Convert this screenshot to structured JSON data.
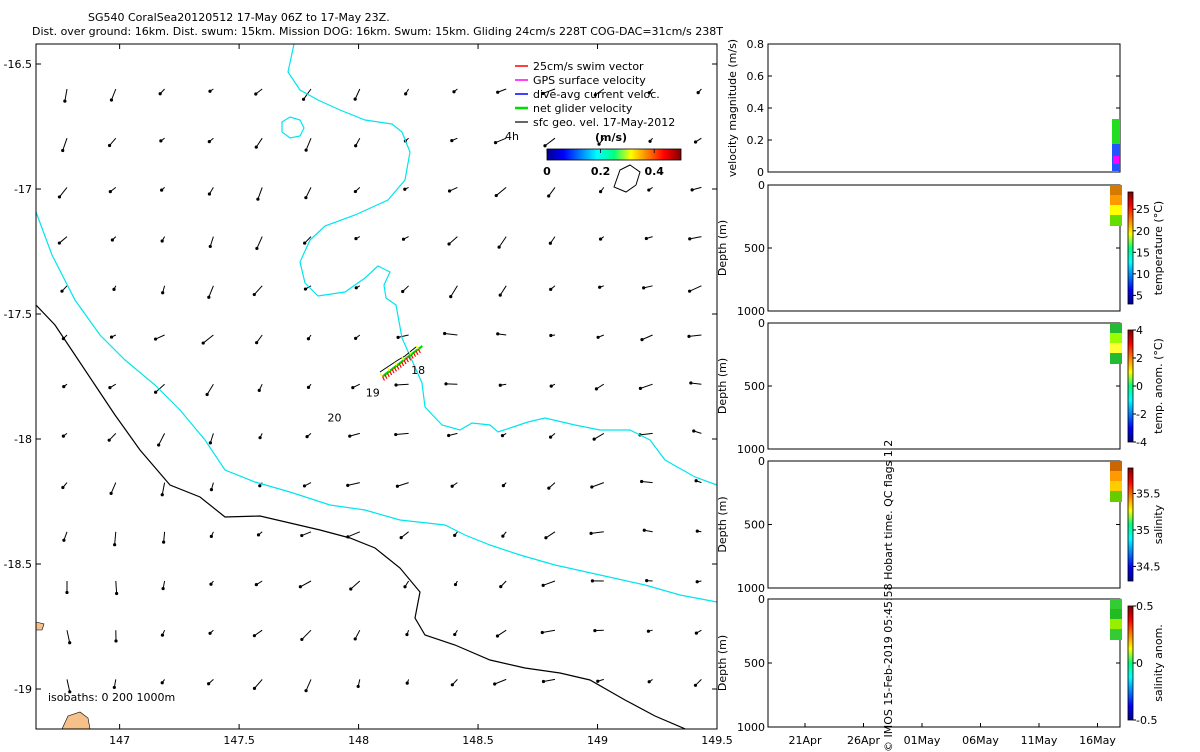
{
  "title": {
    "line1": "SG540 CoralSea20120512 17-May 06Z to 17-May 23Z.",
    "line2": "Dist. over ground: 16km. Dist. swum: 15km. Mission DOG: 16km. Swum: 15km. Gliding 24cm/s 228T COG-DAC=31cm/s 238T"
  },
  "credit": "© IMOS 15-Feb-2019 05:45:58 Hobart time. QC flags 1  2",
  "colors": {
    "isobath_200": "#00e5ee",
    "isobath_1000": "#000000",
    "swim_vector": "#ff0000",
    "gps_velocity": "#ff00ff",
    "dac": "#0000ff",
    "net_velocity": "#00dd00",
    "sfc_vel": "#000000",
    "land": "#f5c08a"
  },
  "chart_data": [
    {
      "type": "scatter",
      "name": "map",
      "xticks": [
        "147",
        "147.5",
        "148",
        "148.5",
        "149",
        "149.5"
      ],
      "yticks": [
        "-16.5",
        "-17",
        "-17.5",
        "-18",
        "-18.5",
        "-19"
      ],
      "xlim": [
        146.65,
        149.5
      ],
      "ylim": [
        -19.16,
        -16.42
      ],
      "legend": [
        {
          "label": "25cm/s swim vector",
          "color": "#ff0000"
        },
        {
          "label": "GPS surface velocity",
          "color": "#ff00ff"
        },
        {
          "label": "dive-avg current veloc.",
          "color": "#0000ff"
        },
        {
          "label": "net glider velocity",
          "color": "#00dd00"
        },
        {
          "label": "sfc geo. vel. 17-May-2012",
          "color": "#000000"
        }
      ],
      "time_label": "4h",
      "colorbar": {
        "label": "(m/s)",
        "ticks": [
          "0",
          "0.2",
          "0.4"
        ],
        "range": [
          0,
          0.5
        ]
      },
      "day_labels": [
        {
          "text": "18",
          "lon": 148.22,
          "lat": -17.74
        },
        {
          "text": "19",
          "lon": 148.03,
          "lat": -17.83
        },
        {
          "text": "20",
          "lon": 147.87,
          "lat": -17.93
        }
      ],
      "isobaths_label": "isobaths: 0   200  1000m",
      "track": [
        [
          148.1,
          -17.75
        ],
        [
          148.14,
          -17.73
        ],
        [
          148.17,
          -17.7
        ],
        [
          148.21,
          -17.67
        ],
        [
          148.25,
          -17.64
        ]
      ]
    },
    {
      "type": "scatter",
      "name": "velocity",
      "ylabel": "velocity magnitude (m/s)",
      "yticks": [
        "0",
        "0.2",
        "0.4",
        "0.6",
        "0.8"
      ],
      "ylim": [
        0,
        0.8
      ]
    },
    {
      "type": "scatter",
      "name": "temperature",
      "ylabel": "Depth (m)",
      "yticks": [
        "0",
        "500",
        "1000"
      ],
      "cbar_label": "temperature (°C)",
      "cbar_ticks": [
        "5",
        "10",
        "15",
        "20",
        "25"
      ],
      "cbar_range": [
        3,
        29
      ]
    },
    {
      "type": "scatter",
      "name": "temp_anom",
      "ylabel": "Depth (m)",
      "yticks": [
        "0",
        "500",
        "1000"
      ],
      "cbar_label": "temp. anom. (°C)",
      "cbar_ticks": [
        "-4",
        "-2",
        "0",
        "2",
        "4"
      ],
      "cbar_range": [
        -4,
        4
      ]
    },
    {
      "type": "scatter",
      "name": "salinity",
      "ylabel": "Depth (m)",
      "yticks": [
        "0",
        "500",
        "1000"
      ],
      "cbar_label": "salinity",
      "cbar_ticks": [
        "34.5",
        "35",
        "35.5"
      ],
      "cbar_range": [
        34.3,
        35.85
      ]
    },
    {
      "type": "scatter",
      "name": "sal_anom",
      "ylabel": "Depth (m)",
      "yticks": [
        "0",
        "500",
        "1000"
      ],
      "cbar_label": "salinity anom.",
      "cbar_ticks": [
        "-0.5",
        "0",
        "0.5"
      ],
      "cbar_range": [
        -0.5,
        0.5
      ]
    },
    {
      "type": "scatter",
      "name": "time_axis",
      "xticks": [
        "21Apr",
        "26Apr",
        "01May",
        "06May",
        "11May",
        "16May"
      ]
    }
  ]
}
